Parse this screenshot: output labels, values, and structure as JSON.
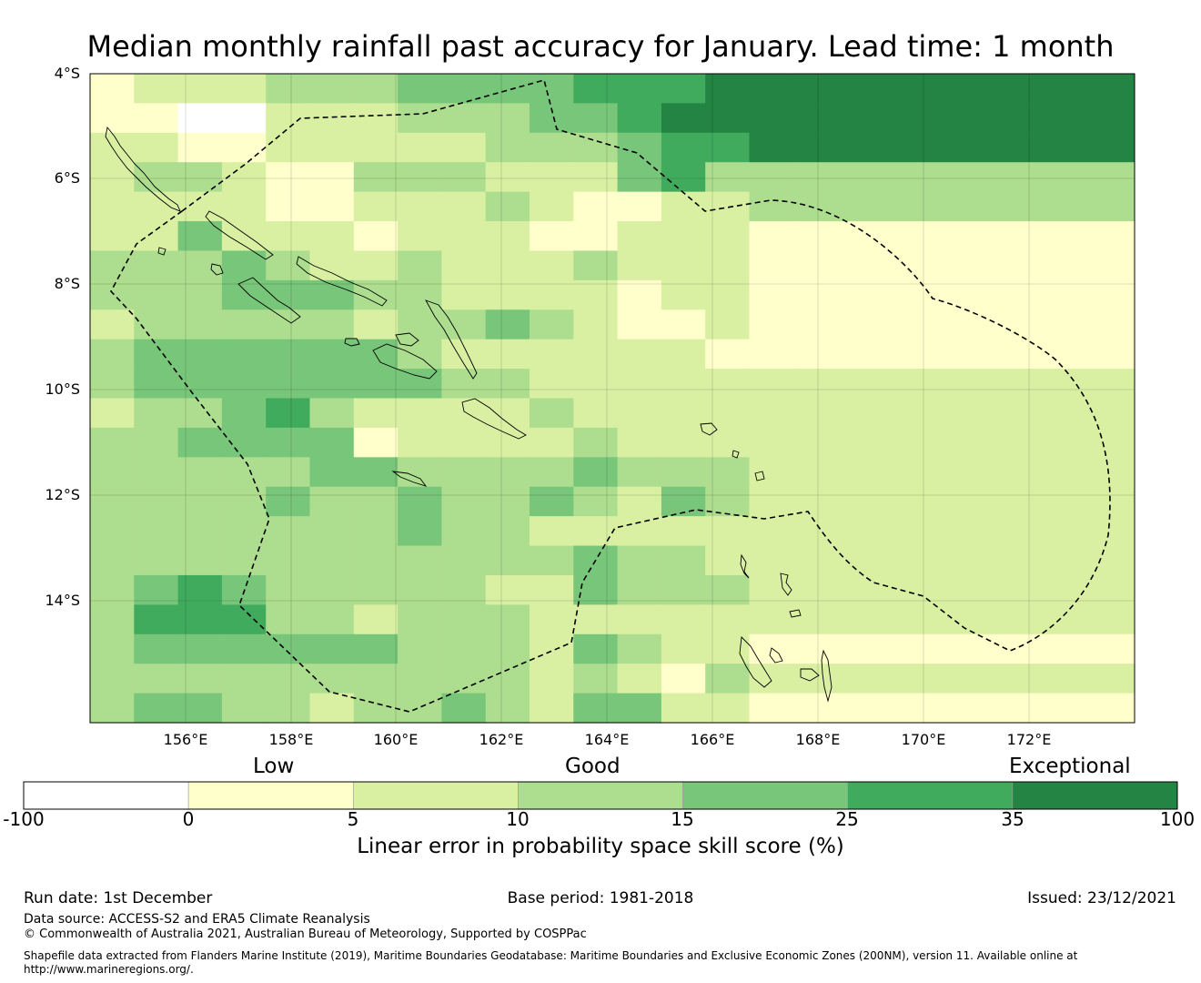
{
  "title": "Median monthly rainfall past accuracy for January. Lead time: 1 month",
  "map": {
    "lat_labels": [
      "4°S",
      "6°S",
      "8°S",
      "10°S",
      "12°S",
      "14°S"
    ],
    "lon_labels": [
      "156°E",
      "158°E",
      "160°E",
      "162°E",
      "164°E",
      "166°E",
      "168°E",
      "170°E",
      "172°E"
    ],
    "grid_rows": [
      "1222333444455566",
      "1100222333445666",
      "2211222223334556",
      "2332113332224533",
      "2222112223211223",
      "2242221222112221",
      "3334322322232221",
      "3334443322221221",
      "2333332334321121",
      "3444444322222211",
      "3444444433222222",
      "2334532222322222",
      "3344441222232222",
      "3333344333343332",
      "3333433433432432",
      "3333333433222222",
      "3333333333343322",
      "3454333332243332",
      "3555332333222222",
      "3444444333243221",
      "3333333333232132",
      "3443323343244221"
    ]
  },
  "legend": {
    "categories": [
      "Low",
      "Good",
      "Exceptional"
    ],
    "ticks": [
      "-100",
      "0",
      "5",
      "10",
      "15",
      "25",
      "35",
      "100"
    ],
    "colors": [
      "#ffffff",
      "#ffffcc",
      "#d9f0a3",
      "#addd8e",
      "#78c679",
      "#41ab5d",
      "#238443"
    ],
    "axis_title": "Linear error in probability space skill score (%)"
  },
  "footer": {
    "run_date": "Run date: 1st December",
    "base_period": "Base period: 1981-2018",
    "issued": "Issued: 23/12/2021",
    "data_source": "Data source: ACCESS-S2 and ERA5 Climate Reanalysis",
    "copyright": "© Commonwealth of Australia 2021, Australian Bureau of Meteorology, Supported by COSPPac",
    "shapefile_line1": "Shapefile data extracted from Flanders Marine Institute (2019), Maritime Boundaries Geodatabase: Maritime Boundaries and Exclusive Economic Zones (200NM), version 11. Available online at",
    "shapefile_line2": "http://www.marineregions.org/."
  }
}
